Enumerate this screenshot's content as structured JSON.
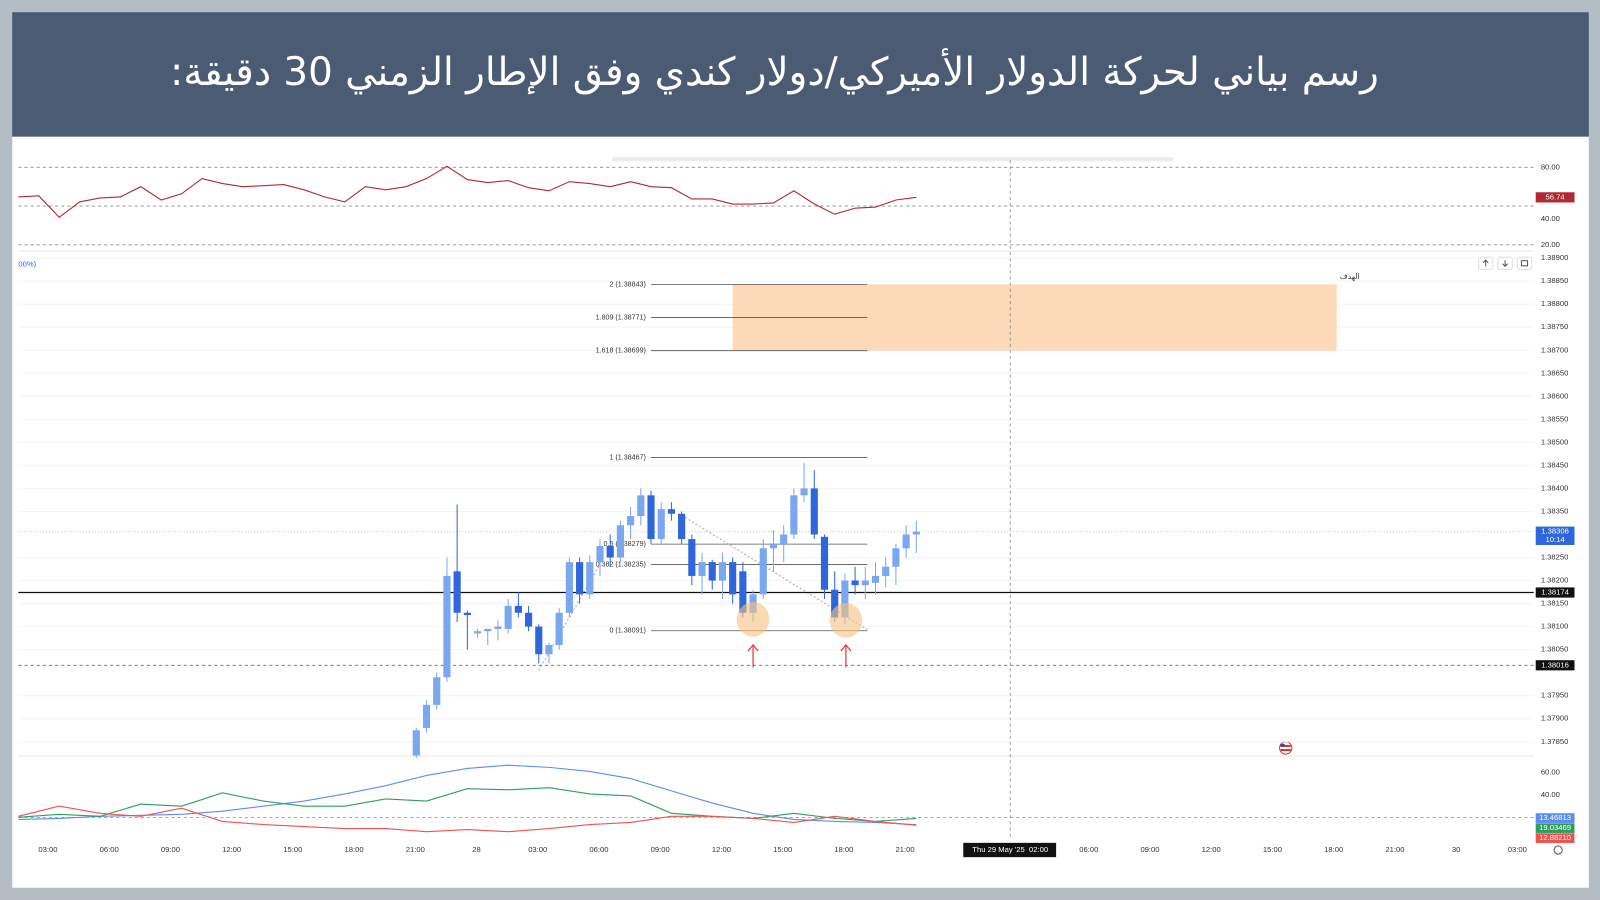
{
  "header": {
    "title": "رسم بياني لحركة الدولار الأميركي/دولار كندي وفق الإطار الزمني 30 دقيقة:"
  },
  "time_axis": {
    "categories": [
      "03:00",
      "06:00",
      "09:00",
      "12:00",
      "15:00",
      "18:00",
      "21:00",
      "28",
      "03:00",
      "06:00",
      "09:00",
      "12:00",
      "15:00",
      "18:00",
      "21:00",
      null,
      null,
      "06:00",
      "09:00",
      "12:00",
      "15:00",
      "18:00",
      "21:00",
      "30",
      "03:00"
    ],
    "crosshair_label": "Thu 29 May '25  02:00"
  },
  "chart_data": [
    {
      "type": "line",
      "color": "#b22833",
      "values": [
        57.1,
        57.9,
        41.3,
        53.2,
        56.3,
        57.1,
        65.0,
        54.7,
        59.5,
        71.3,
        67.4,
        65.0,
        65.8,
        66.6,
        62.6,
        57.1,
        53.2,
        65.0,
        62.6,
        65.0,
        71.3,
        80.8,
        70.5,
        68.2,
        69.7,
        64.2,
        61.8,
        68.9,
        67.4,
        65.0,
        68.9,
        65.0,
        64.2,
        55.5,
        55.5,
        51.6,
        51.6,
        52.4,
        61.8,
        51.6,
        43.7,
        48.4,
        49.2,
        54.7,
        56.74
      ],
      "ylim": [
        16,
        85.5
      ],
      "yticks": [
        {
          "value": 80,
          "label": "80.00"
        },
        {
          "value": 40,
          "label": "40.00"
        },
        {
          "value": 20,
          "label": "20.00"
        }
      ],
      "reference_lines": [
        80,
        50,
        20
      ],
      "last_label": {
        "value": 56.74,
        "label": "56.74"
      }
    },
    {
      "type": "candlestick",
      "up_color": "#7aa7f0",
      "down_color": "#2f66dc",
      "open": [
        1.3782,
        1.3788,
        1.3793,
        1.3799,
        1.3822,
        1.3813,
        1.38085,
        1.3809,
        1.38095,
        1.38095,
        1.38145,
        1.3813,
        1.381,
        1.3804,
        1.3806,
        1.3813,
        1.3824,
        1.3817,
        1.3824,
        1.38275,
        1.3825,
        1.3832,
        1.3834,
        1.38385,
        1.3829,
        1.38355,
        1.38345,
        1.3829,
        1.3821,
        1.3824,
        1.382,
        1.3824,
        1.3822,
        1.3813,
        1.3817,
        1.3827,
        1.3828,
        1.383,
        1.38385,
        1.384,
        1.38295,
        1.3818,
        1.3812,
        1.382,
        1.3819,
        1.38195,
        1.3821,
        1.3823,
        1.3827,
        1.383
      ],
      "high": [
        1.3788,
        1.3794,
        1.38,
        1.3825,
        1.38365,
        1.38135,
        1.38095,
        1.38095,
        1.38115,
        1.3816,
        1.38175,
        1.38145,
        1.38105,
        1.38065,
        1.3814,
        1.3825,
        1.3825,
        1.38255,
        1.3829,
        1.383,
        1.3833,
        1.3836,
        1.384,
        1.38395,
        1.3837,
        1.3837,
        1.3835,
        1.383,
        1.3826,
        1.38245,
        1.3826,
        1.3825,
        1.3824,
        1.3818,
        1.3829,
        1.3831,
        1.3832,
        1.384,
        1.38455,
        1.3844,
        1.383,
        1.3822,
        1.38215,
        1.3823,
        1.3823,
        1.3824,
        1.3825,
        1.3828,
        1.3832,
        1.3833
      ],
      "low": [
        1.37815,
        1.3787,
        1.3792,
        1.3798,
        1.3811,
        1.3805,
        1.38075,
        1.3806,
        1.3807,
        1.38085,
        1.3812,
        1.3809,
        1.3802,
        1.3802,
        1.3805,
        1.3812,
        1.3815,
        1.3816,
        1.3821,
        1.3823,
        1.3824,
        1.3829,
        1.3832,
        1.3828,
        1.3828,
        1.3833,
        1.3828,
        1.3819,
        1.3817,
        1.3818,
        1.3816,
        1.3815,
        1.3812,
        1.3811,
        1.3816,
        1.3822,
        1.3824,
        1.3829,
        1.3837,
        1.3829,
        1.3816,
        1.3811,
        1.38105,
        1.3817,
        1.3816,
        1.3817,
        1.38185,
        1.3819,
        1.3825,
        1.3826
      ],
      "close": [
        1.37875,
        1.3793,
        1.3799,
        1.3821,
        1.3813,
        1.38125,
        1.3809,
        1.38095,
        1.381,
        1.38145,
        1.3813,
        1.381,
        1.3804,
        1.3806,
        1.3813,
        1.3824,
        1.3817,
        1.3824,
        1.38275,
        1.3825,
        1.3832,
        1.3834,
        1.38385,
        1.3829,
        1.38355,
        1.38345,
        1.3829,
        1.3821,
        1.3824,
        1.382,
        1.3824,
        1.3817,
        1.3813,
        1.3817,
        1.3827,
        1.3828,
        1.383,
        1.38385,
        1.384,
        1.383,
        1.3818,
        1.3812,
        1.382,
        1.3819,
        1.382,
        1.3821,
        1.3823,
        1.3827,
        1.383,
        1.38306
      ],
      "ylim": [
        1.37821,
        1.38911
      ],
      "yticks": [
        {
          "value": 1.389,
          "label": "1.38900"
        },
        {
          "value": 1.3885,
          "label": "1.38850"
        },
        {
          "value": 1.388,
          "label": "1.38800"
        },
        {
          "value": 1.3875,
          "label": "1.38750"
        },
        {
          "value": 1.387,
          "label": "1.38700"
        },
        {
          "value": 1.3865,
          "label": "1.38650"
        },
        {
          "value": 1.386,
          "label": "1.38600"
        },
        {
          "value": 1.3855,
          "label": "1.38550"
        },
        {
          "value": 1.385,
          "label": "1.38500"
        },
        {
          "value": 1.3845,
          "label": "1.38450"
        },
        {
          "value": 1.384,
          "label": "1.38400"
        },
        {
          "value": 1.3835,
          "label": "1.38350"
        },
        {
          "value": 1.3825,
          "label": "1.38250"
        },
        {
          "value": 1.382,
          "label": "1.38200"
        },
        {
          "value": 1.3815,
          "label": "1.38150"
        },
        {
          "value": 1.381,
          "label": "1.38100"
        },
        {
          "value": 1.3805,
          "label": "1.38050"
        },
        {
          "value": 1.3795,
          "label": "1.37950"
        },
        {
          "value": 1.379,
          "label": "1.37900"
        },
        {
          "value": 1.3785,
          "label": "1.37850"
        }
      ],
      "fib_levels": [
        {
          "label": "2 (1.38843)",
          "value": 1.38843
        },
        {
          "label": "1.809 (1.38771)",
          "value": 1.38771
        },
        {
          "label": "1.618 (1.38699)",
          "value": 1.38699
        },
        {
          "label": "1 (1.38467)",
          "value": 1.38467
        },
        {
          "label": "0.5 (1.38279)",
          "value": 1.38279
        },
        {
          "label": "0.382 (1.38235)",
          "value": 1.38235
        },
        {
          "label": "0 (1.38091)",
          "value": 1.38091
        }
      ],
      "target_zone": {
        "label": "الهدف",
        "top": 1.38843,
        "bottom": 1.38699
      },
      "price_lines": [
        {
          "value": 1.38174,
          "label": "1.38174",
          "style": "solid"
        },
        {
          "value": 1.38016,
          "label": "1.38016",
          "style": "dashed"
        }
      ],
      "last_price": {
        "value": 1.38306,
        "label": "1.38306",
        "countdown": "10:14"
      },
      "legend_fragment": "00%)"
    },
    {
      "type": "line",
      "series": [
        {
          "color": "#5b8def",
          "values": [
            18.2,
            19.1,
            20.9,
            21.8,
            22.7,
            25.5,
            30,
            34.5,
            40.9,
            48.2,
            57.3,
            63.6,
            66.4,
            64.5,
            60.9,
            54.5,
            43.6,
            32.7,
            23.6,
            18.2,
            16.4,
            15.5,
            13.46813
          ],
          "last_label": {
            "value": 13.46813,
            "label": "13.46813"
          }
        },
        {
          "color": "#2e9e5e",
          "values": [
            20,
            22.7,
            20.9,
            31.8,
            30,
            41.8,
            34.5,
            30,
            30,
            36.4,
            34.5,
            45.5,
            44.5,
            46.4,
            40.9,
            39.1,
            23.6,
            20.9,
            19.1,
            23.6,
            19.1,
            16.4,
            19.03469
          ],
          "last_label": {
            "value": 19.03469,
            "label": "19.03469"
          }
        },
        {
          "color": "#ef5350",
          "values": [
            20.9,
            30,
            23.6,
            20.9,
            28.2,
            16.4,
            13.6,
            11.8,
            10,
            10,
            7.3,
            9.1,
            7.3,
            10,
            13.6,
            15.5,
            20.9,
            20.9,
            19.1,
            15.5,
            20.9,
            16.4,
            12.8821
          ],
          "last_label": {
            "value": 12.8821,
            "label": "12.88210"
          }
        }
      ],
      "ylim": [
        7.3,
        72.7
      ],
      "yticks": [
        {
          "value": 60,
          "label": "60.00"
        },
        {
          "value": 40,
          "label": "40.00"
        }
      ],
      "reference_lines": [
        20
      ]
    }
  ]
}
